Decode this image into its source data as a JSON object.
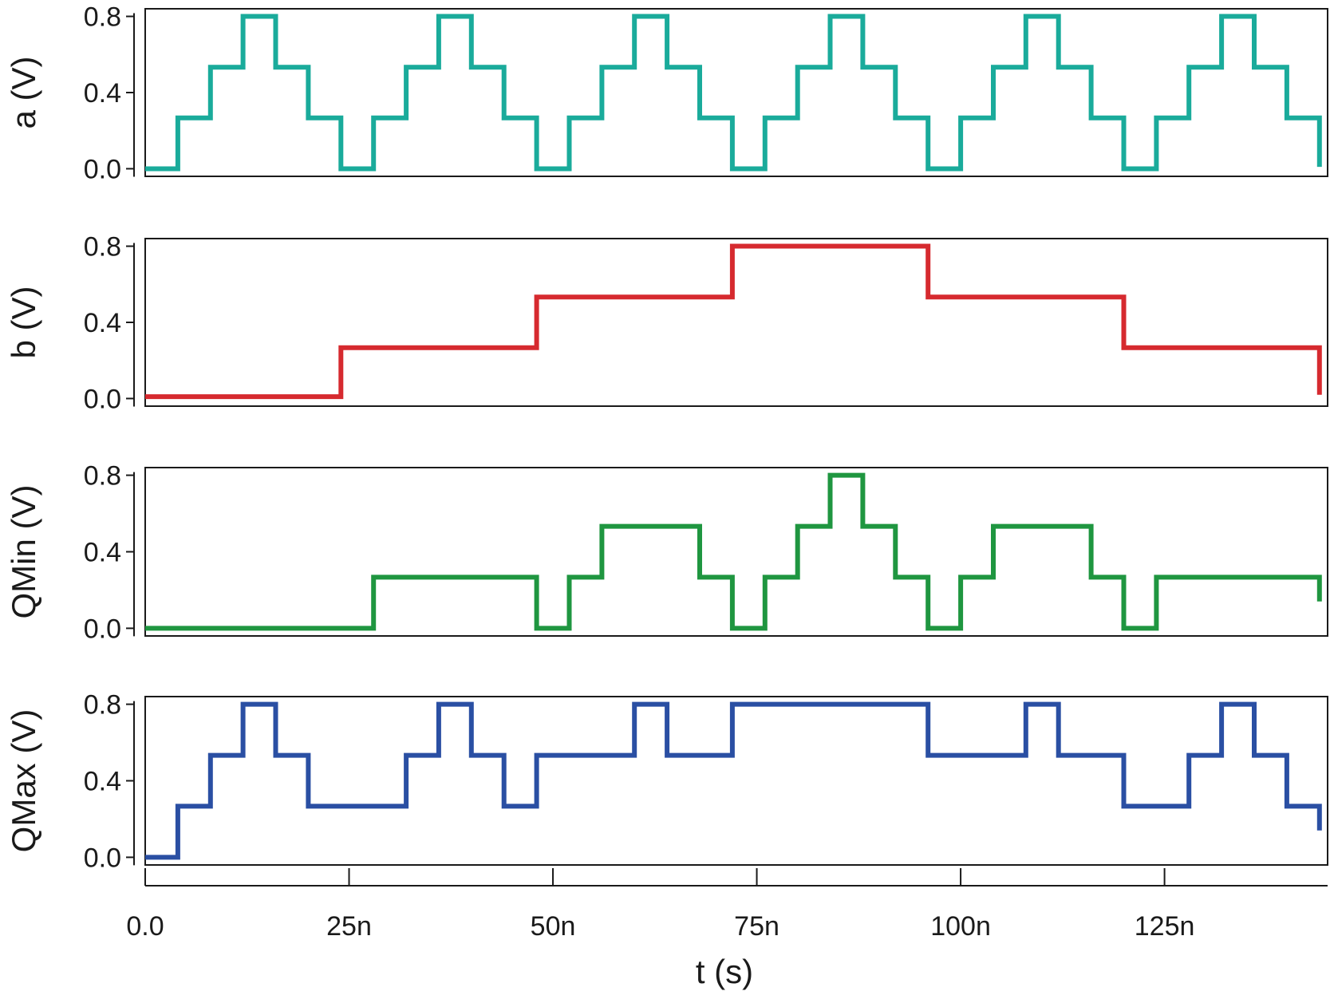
{
  "chart_data": {
    "type": "line",
    "layout": "vertically stacked panels with shared time axis",
    "grid": false,
    "legend": "none",
    "xlabel": "t (s)",
    "x_unit": "s",
    "xlim": [
      0,
      1.45e-07
    ],
    "x_ticks": [
      {
        "value": 0,
        "label": "0.0"
      },
      {
        "value": 2.5e-08,
        "label": "25n"
      },
      {
        "value": 5e-08,
        "label": "50n"
      },
      {
        "value": 7.5e-08,
        "label": "75n"
      },
      {
        "value": 1e-07,
        "label": "100n"
      },
      {
        "value": 1.25e-07,
        "label": "125n"
      }
    ],
    "panels": [
      {
        "ylabel": "a (V)",
        "color": "#1aab9b",
        "ylim": [
          -0.04,
          0.84
        ],
        "y_ticks": [
          {
            "value": 0.0,
            "label": "0.0"
          },
          {
            "value": 0.4,
            "label": "0.4"
          },
          {
            "value": 0.8,
            "label": "0.8"
          }
        ],
        "series": {
          "x": [
            0,
            4e-09,
            8e-09,
            1.2e-08,
            1.6e-08,
            2e-08,
            2.4e-08,
            2.8e-08,
            3.2e-08,
            3.6e-08,
            4e-08,
            4.4e-08,
            4.8e-08,
            5.2e-08,
            5.6e-08,
            6e-08,
            6.4e-08,
            6.8e-08,
            7.2e-08,
            7.6e-08,
            8e-08,
            8.4e-08,
            8.8e-08,
            9.2e-08,
            9.6e-08,
            1e-07,
            1.04e-07,
            1.08e-07,
            1.12e-07,
            1.16e-07,
            1.2e-07,
            1.24e-07,
            1.28e-07,
            1.32e-07,
            1.36e-07,
            1.4e-07,
            1.44e-07
          ],
          "y": [
            0,
            0.267,
            0.533,
            0.8,
            0.533,
            0.267,
            0,
            0.267,
            0.533,
            0.8,
            0.533,
            0.267,
            0,
            0.267,
            0.533,
            0.8,
            0.533,
            0.267,
            0,
            0.267,
            0.533,
            0.8,
            0.533,
            0.267,
            0,
            0.267,
            0.533,
            0.8,
            0.533,
            0.267,
            0,
            0.267,
            0.533,
            0.8,
            0.533,
            0.267,
            0.01
          ]
        }
      },
      {
        "ylabel": "b (V)",
        "color": "#d62a2f",
        "ylim": [
          -0.04,
          0.84
        ],
        "y_ticks": [
          {
            "value": 0.0,
            "label": "0.0"
          },
          {
            "value": 0.4,
            "label": "0.4"
          },
          {
            "value": 0.8,
            "label": "0.8"
          }
        ],
        "series": {
          "x": [
            0,
            2.4e-08,
            4.8e-08,
            7.2e-08,
            9.6e-08,
            1.2e-07,
            1.44e-07
          ],
          "y": [
            0.01,
            0.267,
            0.533,
            0.8,
            0.533,
            0.267,
            0.02
          ]
        }
      },
      {
        "ylabel": "QMin (V)",
        "color": "#1f9640",
        "ylim": [
          -0.04,
          0.84
        ],
        "y_ticks": [
          {
            "value": 0.0,
            "label": "0.0"
          },
          {
            "value": 0.4,
            "label": "0.4"
          },
          {
            "value": 0.8,
            "label": "0.8"
          }
        ],
        "series": {
          "x": [
            0,
            2.8e-08,
            4.8e-08,
            5.2e-08,
            5.6e-08,
            6.8e-08,
            7.2e-08,
            7.6e-08,
            8e-08,
            8.4e-08,
            8.8e-08,
            9.2e-08,
            9.6e-08,
            1e-07,
            1.04e-07,
            1.16e-07,
            1.2e-07,
            1.24e-07,
            1.44e-07
          ],
          "y": [
            0,
            0.267,
            0,
            0.267,
            0.533,
            0.267,
            0,
            0.267,
            0.533,
            0.8,
            0.533,
            0.267,
            0,
            0.267,
            0.533,
            0.267,
            0,
            0.267,
            0.14
          ]
        }
      },
      {
        "ylabel": "QMax (V)",
        "color": "#2a4fa3",
        "ylim": [
          -0.04,
          0.84
        ],
        "y_ticks": [
          {
            "value": 0.0,
            "label": "0.0"
          },
          {
            "value": 0.4,
            "label": "0.4"
          },
          {
            "value": 0.8,
            "label": "0.8"
          }
        ],
        "series": {
          "x": [
            0,
            4e-09,
            8e-09,
            1.2e-08,
            1.6e-08,
            2e-08,
            3.2e-08,
            3.6e-08,
            4e-08,
            4.4e-08,
            4.8e-08,
            5.6e-08,
            6e-08,
            6.4e-08,
            7.2e-08,
            9.6e-08,
            1.04e-07,
            1.08e-07,
            1.12e-07,
            1.2e-07,
            1.28e-07,
            1.32e-07,
            1.36e-07,
            1.4e-07,
            1.44e-07
          ],
          "y": [
            0,
            0.267,
            0.533,
            0.8,
            0.533,
            0.267,
            0.533,
            0.8,
            0.533,
            0.267,
            0.533,
            0.533,
            0.8,
            0.533,
            0.8,
            0.533,
            0.533,
            0.8,
            0.533,
            0.267,
            0.533,
            0.8,
            0.533,
            0.267,
            0.14
          ]
        }
      }
    ]
  }
}
